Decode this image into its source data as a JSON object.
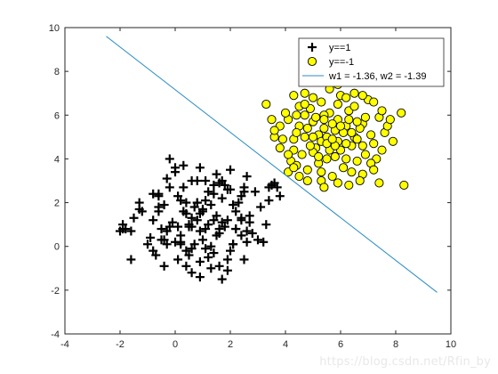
{
  "chart_data": {
    "type": "scatter",
    "title": "",
    "xlabel": "",
    "ylabel": "",
    "xlim": [
      -4,
      10
    ],
    "ylim": [
      -4,
      10
    ],
    "xticks": [
      -4,
      -2,
      0,
      2,
      4,
      6,
      8,
      10
    ],
    "yticks": [
      -4,
      -2,
      0,
      2,
      4,
      6,
      8,
      10
    ],
    "grid": false,
    "legend_position": "top-right",
    "series": [
      {
        "name": "y==1",
        "marker": "plus",
        "color": "#000000",
        "points": [
          [
            0.8,
            1.2
          ],
          [
            1.5,
            0.5
          ],
          [
            0.2,
            2.1
          ],
          [
            -0.5,
            0.8
          ],
          [
            1.9,
            2.6
          ],
          [
            0.5,
            -0.4
          ],
          [
            2.4,
            1.3
          ],
          [
            1.1,
            3.0
          ],
          [
            -1.2,
            1.6
          ],
          [
            0.0,
            0.2
          ],
          [
            2.9,
            2.5
          ],
          [
            1.6,
            -0.9
          ],
          [
            -0.3,
            3.1
          ],
          [
            0.9,
            0.7
          ],
          [
            1.3,
            1.9
          ],
          [
            2.1,
            0.1
          ],
          [
            0.4,
            1.5
          ],
          [
            -0.8,
            -0.2
          ],
          [
            1.7,
            2.2
          ],
          [
            3.3,
            1.0
          ],
          [
            0.6,
            -1.2
          ],
          [
            2.6,
            3.2
          ],
          [
            -1.6,
            0.7
          ],
          [
            1.0,
            0.3
          ],
          [
            0.3,
            2.7
          ],
          [
            2.2,
            1.6
          ],
          [
            1.4,
            -0.3
          ],
          [
            -0.1,
            1.1
          ],
          [
            3.6,
            2.9
          ],
          [
            0.7,
            1.8
          ],
          [
            1.8,
            0.9
          ],
          [
            2.5,
            -0.6
          ],
          [
            -0.6,
            2.4
          ],
          [
            1.2,
            2.5
          ],
          [
            0.1,
            -0.6
          ],
          [
            2.0,
            3.5
          ],
          [
            1.5,
            1.4
          ],
          [
            -1.0,
            0.1
          ],
          [
            2.8,
            0.6
          ],
          [
            0.5,
            0.9
          ],
          [
            1.9,
            -1.1
          ],
          [
            0.9,
            3.6
          ],
          [
            -0.4,
            1.9
          ],
          [
            3.1,
            1.8
          ],
          [
            1.1,
            -0.1
          ],
          [
            2.3,
            2.0
          ],
          [
            0.2,
            0.5
          ],
          [
            1.6,
            2.9
          ],
          [
            -1.9,
            0.8
          ],
          [
            2.7,
            1.1
          ],
          [
            0.8,
            2.0
          ],
          [
            1.3,
            0.0
          ],
          [
            0.0,
            3.4
          ],
          [
            2.0,
            -0.2
          ],
          [
            1.7,
            1.1
          ],
          [
            -0.7,
            -0.4
          ],
          [
            3.0,
            0.3
          ],
          [
            0.6,
            1.3
          ],
          [
            1.4,
            2.4
          ],
          [
            2.5,
            2.7
          ],
          [
            -0.2,
            0.9
          ],
          [
            1.0,
            1.7
          ],
          [
            0.4,
            -0.9
          ],
          [
            2.2,
            0.8
          ],
          [
            1.8,
            2.8
          ],
          [
            3.8,
            2.3
          ],
          [
            0.7,
            0.1
          ],
          [
            1.2,
            1.0
          ],
          [
            -1.5,
            1.3
          ],
          [
            2.6,
            0.2
          ],
          [
            0.3,
            1.6
          ],
          [
            1.5,
            3.3
          ],
          [
            0.9,
            -0.7
          ],
          [
            2.1,
            1.9
          ],
          [
            -0.9,
            0.4
          ],
          [
            1.6,
            0.6
          ],
          [
            2.4,
            2.3
          ],
          [
            0.1,
            2.3
          ],
          [
            1.1,
            0.8
          ],
          [
            3.4,
            2.7
          ],
          [
            -2.0,
            0.7
          ],
          [
            -1.8,
            0.8
          ],
          [
            -1.9,
            1.0
          ],
          [
            -1.3,
            2.0
          ],
          [
            -1.6,
            -0.6
          ],
          [
            -1.3,
            1.7
          ],
          [
            -0.8,
            2.4
          ],
          [
            -0.6,
            2.3
          ],
          [
            -0.5,
            0.3
          ],
          [
            -0.4,
            0.3
          ],
          [
            -0.3,
            0.7
          ],
          [
            -0.6,
            1.8
          ],
          [
            -0.2,
            4.0
          ],
          [
            0.0,
            3.6
          ],
          [
            0.3,
            3.7
          ],
          [
            -0.2,
            2.7
          ],
          [
            0.2,
            0.2
          ],
          [
            0.2,
            0.1
          ],
          [
            0.5,
            1.0
          ],
          [
            0.6,
            0.9
          ],
          [
            -0.4,
            -0.9
          ],
          [
            -0.3,
            0.1
          ],
          [
            0.4,
            2.0
          ],
          [
            0.6,
            3.0
          ],
          [
            0.8,
            3.0
          ],
          [
            0.8,
            2.0
          ],
          [
            0.9,
            1.5
          ],
          [
            1.0,
            1.6
          ],
          [
            0.9,
            -1.4
          ],
          [
            1.3,
            -1.0
          ],
          [
            1.7,
            -1.5
          ],
          [
            1.6,
            0.8
          ],
          [
            2.2,
            0.8
          ],
          [
            2.1,
            0.1
          ],
          [
            2.4,
            0.5
          ],
          [
            2.6,
            0.7
          ],
          [
            2.7,
            1.4
          ],
          [
            3.4,
            2.1
          ],
          [
            3.7,
            2.7
          ],
          [
            3.5,
            2.8
          ],
          [
            3.2,
            0.2
          ],
          [
            2.5,
            2.5
          ],
          [
            2.0,
            2.6
          ],
          [
            2.4,
            1.2
          ],
          [
            1.9,
            1.2
          ],
          [
            1.4,
            1.2
          ],
          [
            0.6,
            -0.1
          ],
          [
            1.1,
            2.1
          ],
          [
            1.7,
            3.0
          ],
          [
            1.4,
            2.8
          ],
          [
            0.1,
            0.9
          ],
          [
            -0.6,
            1.6
          ],
          [
            -0.8,
            1.2
          ],
          [
            0.4,
            -0.2
          ],
          [
            1.2,
            -0.5
          ],
          [
            1.9,
            -0.6
          ]
        ]
      },
      {
        "name": "y==-1",
        "marker": "circle",
        "color": "#ffff00",
        "edge_color": "#000000",
        "points": [
          [
            5.2,
            5.1
          ],
          [
            6.0,
            4.4
          ],
          [
            4.7,
            6.0
          ],
          [
            6.8,
            5.6
          ],
          [
            5.5,
            4.0
          ],
          [
            4.3,
            4.9
          ],
          [
            6.3,
            6.2
          ],
          [
            5.0,
            5.7
          ],
          [
            7.2,
            4.7
          ],
          [
            5.8,
            5.3
          ],
          [
            4.8,
            3.5
          ],
          [
            6.5,
            5.0
          ],
          [
            5.3,
            6.6
          ],
          [
            7.4,
            5.9
          ],
          [
            4.5,
            5.5
          ],
          [
            6.1,
            3.6
          ],
          [
            5.6,
            6.1
          ],
          [
            6.9,
            4.2
          ],
          [
            4.1,
            5.8
          ],
          [
            5.9,
            5.8
          ],
          [
            5.1,
            4.5
          ],
          [
            7.0,
            6.7
          ],
          [
            6.4,
            4.6
          ],
          [
            4.6,
            4.2
          ],
          [
            5.4,
            5.4
          ],
          [
            7.6,
            5.2
          ],
          [
            3.8,
            4.5
          ],
          [
            6.2,
            5.5
          ],
          [
            5.7,
            3.2
          ],
          [
            4.9,
            6.3
          ],
          [
            6.6,
            3.9
          ],
          [
            5.3,
            4.8
          ],
          [
            7.9,
            4.8
          ],
          [
            4.4,
            5.2
          ],
          [
            6.0,
            6.9
          ],
          [
            5.5,
            5.0
          ],
          [
            6.7,
            5.4
          ],
          [
            4.2,
            3.9
          ],
          [
            5.8,
            4.1
          ],
          [
            7.3,
            4.0
          ],
          [
            5.0,
            4.3
          ],
          [
            6.3,
            5.8
          ],
          [
            4.7,
            5.0
          ],
          [
            5.9,
            4.8
          ],
          [
            8.2,
            6.1
          ],
          [
            3.6,
            5.0
          ],
          [
            6.5,
            6.4
          ],
          [
            5.2,
            3.8
          ],
          [
            7.1,
            5.1
          ],
          [
            4.9,
            4.6
          ],
          [
            6.1,
            5.2
          ],
          [
            5.4,
            6.0
          ],
          [
            4.5,
            6.4
          ],
          [
            6.8,
            4.6
          ],
          [
            5.6,
            4.4
          ],
          [
            8.3,
            2.8
          ],
          [
            5.1,
            5.9
          ],
          [
            6.4,
            3.4
          ],
          [
            4.3,
            4.4
          ],
          [
            7.5,
            4.4
          ],
          [
            5.7,
            5.6
          ],
          [
            4.0,
            6.1
          ],
          [
            6.9,
            5.9
          ],
          [
            5.3,
            3.4
          ],
          [
            6.2,
            4.0
          ],
          [
            4.8,
            5.4
          ],
          [
            7.7,
            5.5
          ],
          [
            5.0,
            6.8
          ],
          [
            6.6,
            4.9
          ],
          [
            4.4,
            3.7
          ],
          [
            5.9,
            6.5
          ],
          [
            5.5,
            4.7
          ],
          [
            3.3,
            6.5
          ],
          [
            3.5,
            5.8
          ],
          [
            3.8,
            5.5
          ],
          [
            3.6,
            5.3
          ],
          [
            3.9,
            4.9
          ],
          [
            4.1,
            4.2
          ],
          [
            4.1,
            3.4
          ],
          [
            4.3,
            3.6
          ],
          [
            4.3,
            6.9
          ],
          [
            4.4,
            6.0
          ],
          [
            4.7,
            6.5
          ],
          [
            4.7,
            7.0
          ],
          [
            4.5,
            3.2
          ],
          [
            4.8,
            3.0
          ],
          [
            5.3,
            3.0
          ],
          [
            5.4,
            2.7
          ],
          [
            5.6,
            7.2
          ],
          [
            5.9,
            7.4
          ],
          [
            6.2,
            6.8
          ],
          [
            6.5,
            7.0
          ],
          [
            6.8,
            6.9
          ],
          [
            7.2,
            6.6
          ],
          [
            7.5,
            6.2
          ],
          [
            7.8,
            5.8
          ],
          [
            7.1,
            3.8
          ],
          [
            7.2,
            3.5
          ],
          [
            6.8,
            3.3
          ],
          [
            7.4,
            2.9
          ],
          [
            6.7,
            3.0
          ],
          [
            6.3,
            2.8
          ],
          [
            5.9,
            2.9
          ],
          [
            5.2,
            4.1
          ],
          [
            5.4,
            5.8
          ],
          [
            6.0,
            5.5
          ],
          [
            6.4,
            5.2
          ],
          [
            5.8,
            4.6
          ],
          [
            6.6,
            5.7
          ],
          [
            5.0,
            5.0
          ],
          [
            6.2,
            4.7
          ],
          [
            5.7,
            4.9
          ]
        ]
      },
      {
        "name": "w1 = -1.36, w2 = -1.39",
        "marker": "line",
        "color": "#2b8cc4",
        "points": [
          [
            -2.5,
            9.6
          ],
          [
            9.5,
            -2.1
          ]
        ]
      }
    ]
  },
  "watermark": "https://blog.csdn.net/Rfin_by"
}
